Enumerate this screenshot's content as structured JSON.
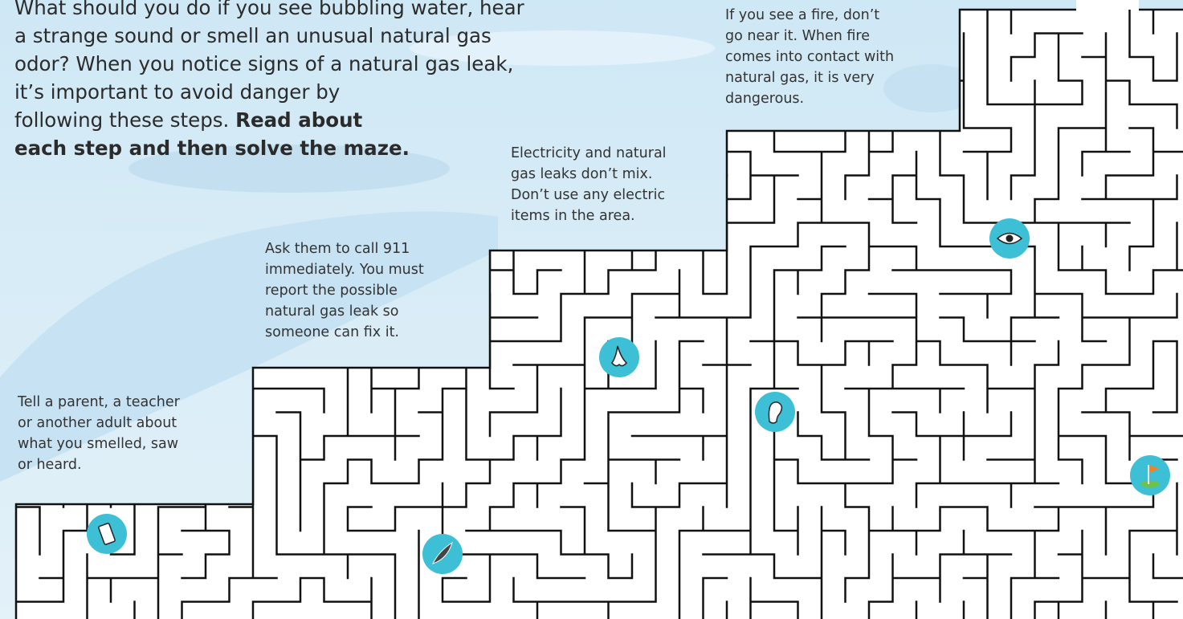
{
  "intro": {
    "lines": [
      "What should you do if you see bubbling water, hear",
      "a strange sound or smell an unusual natural gas",
      "odor? When you notice signs of a natural gas leak,",
      "it’s important to avoid danger by",
      "following these steps."
    ],
    "bold_lines": [
      "Read about",
      "each step and then solve the maze."
    ]
  },
  "steps": [
    {
      "lines": [
        "Tell a parent, a teacher",
        "or another adult about",
        "what you smelled, saw",
        "or heard."
      ]
    },
    {
      "lines": [
        "Ask them to call 911",
        "immediately. You must",
        "report the possible",
        "natural gas leak so",
        "someone can fix it."
      ]
    },
    {
      "lines": [
        "Electricity and natural",
        "gas leaks don’t mix.",
        "Don’t use any electric",
        "items in the area."
      ]
    },
    {
      "lines": [
        "If you see a fire, don’t",
        "go near it. When fire",
        "comes into contact with",
        "natural gas, it is very",
        "dangerous."
      ]
    }
  ]
}
